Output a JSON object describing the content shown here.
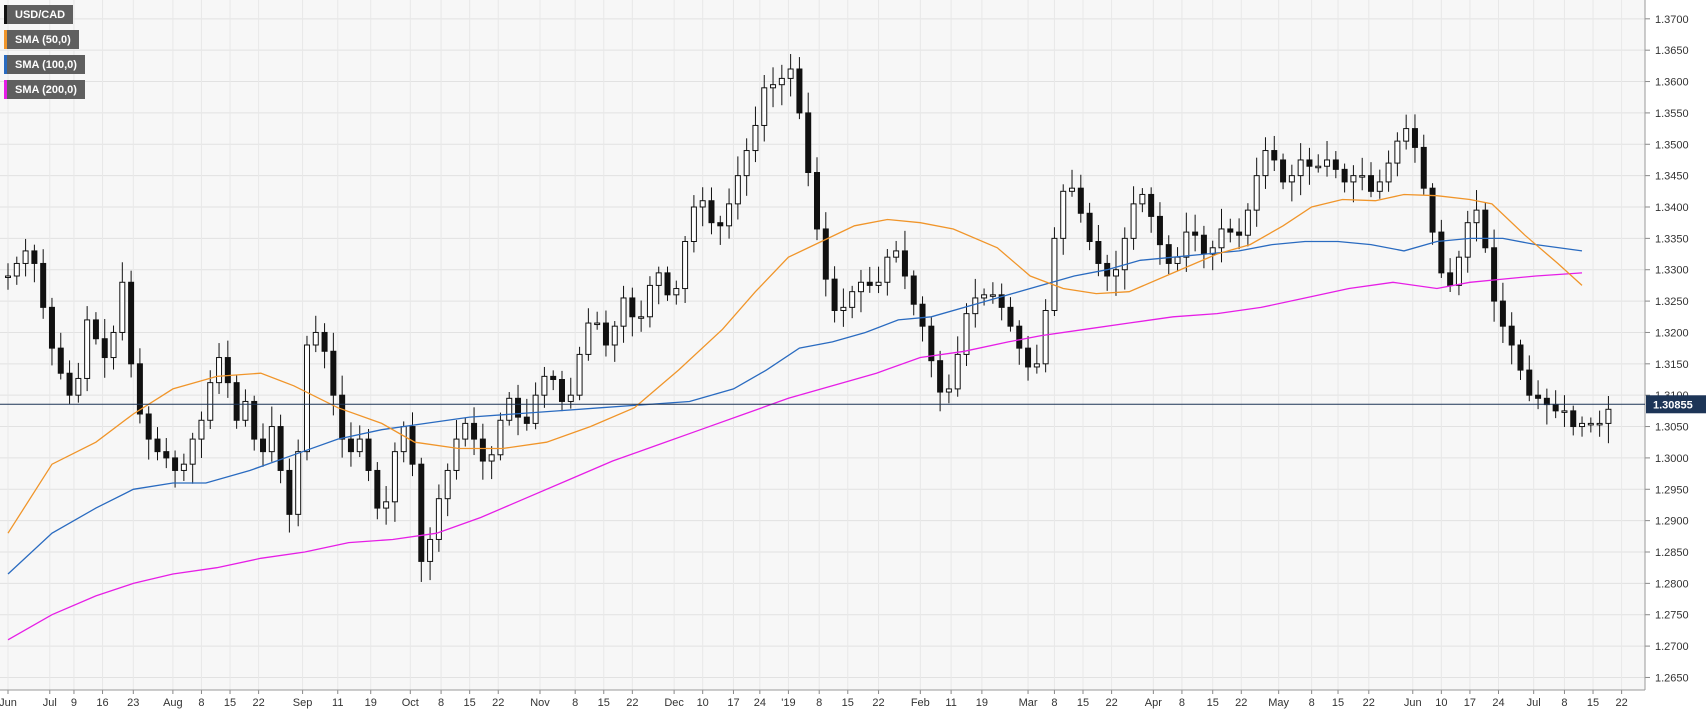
{
  "legend": [
    {
      "label": "USD/CAD",
      "color": "#222222"
    },
    {
      "label": "SMA (50,0)",
      "color": "#f0952a"
    },
    {
      "label": "SMA (100,0)",
      "color": "#2a6bc0"
    },
    {
      "label": "SMA (200,0)",
      "color": "#e61ee6"
    }
  ],
  "chart_data": {
    "type": "candlestick",
    "symbol": "USD/CAD",
    "timeframe": "daily",
    "last_price": "1.30855",
    "ylim": [
      1.263,
      1.373
    ],
    "y_ticks": [
      "1.2650",
      "1.2700",
      "1.2750",
      "1.2800",
      "1.2850",
      "1.2900",
      "1.2950",
      "1.3000",
      "1.3050",
      "1.3100",
      "1.3150",
      "1.3200",
      "1.3250",
      "1.3300",
      "1.3350",
      "1.3400",
      "1.3450",
      "1.3500",
      "1.3550",
      "1.3600",
      "1.3650",
      "1.3700"
    ],
    "x_ticks": [
      {
        "i": 0,
        "label": "Jun"
      },
      {
        "i": 19,
        "label": "Jul"
      },
      {
        "i": 30,
        "label": "9"
      },
      {
        "i": 43,
        "label": "16"
      },
      {
        "i": 57,
        "label": "23"
      },
      {
        "i": 75,
        "label": "Aug"
      },
      {
        "i": 88,
        "label": "8"
      },
      {
        "i": 101,
        "label": "15"
      },
      {
        "i": 114,
        "label": "22"
      },
      {
        "i": 134,
        "label": "Sep"
      },
      {
        "i": 150,
        "label": "11"
      },
      {
        "i": 165,
        "label": "19"
      },
      {
        "i": 183,
        "label": "Oct"
      },
      {
        "i": 197,
        "label": "8"
      },
      {
        "i": 210,
        "label": "15"
      },
      {
        "i": 223,
        "label": "22"
      },
      {
        "i": 242,
        "label": "Nov"
      },
      {
        "i": 258,
        "label": "8"
      },
      {
        "i": 271,
        "label": "15"
      },
      {
        "i": 284,
        "label": "22"
      },
      {
        "i": 303,
        "label": "Dec"
      },
      {
        "i": 316,
        "label": "10"
      },
      {
        "i": 330,
        "label": "17"
      },
      {
        "i": 342,
        "label": "24"
      },
      {
        "i": 355,
        "label": "'19"
      },
      {
        "i": 369,
        "label": "8"
      },
      {
        "i": 382,
        "label": "15"
      },
      {
        "i": 396,
        "label": "22"
      },
      {
        "i": 415,
        "label": "Feb"
      },
      {
        "i": 429,
        "label": "11"
      },
      {
        "i": 443,
        "label": "19"
      },
      {
        "i": 464,
        "label": "Mar"
      },
      {
        "i": 476,
        "label": "8"
      },
      {
        "i": 489,
        "label": "15"
      },
      {
        "i": 502,
        "label": "22"
      },
      {
        "i": 521,
        "label": "Apr"
      },
      {
        "i": 534,
        "label": "8"
      },
      {
        "i": 548,
        "label": "15"
      },
      {
        "i": 561,
        "label": "22"
      },
      {
        "i": 578,
        "label": "May"
      },
      {
        "i": 593,
        "label": "8"
      },
      {
        "i": 605,
        "label": "15"
      },
      {
        "i": 619,
        "label": "22"
      },
      {
        "i": 639,
        "label": "Jun"
      },
      {
        "i": 652,
        "label": "10"
      },
      {
        "i": 665,
        "label": "17"
      },
      {
        "i": 678,
        "label": "24"
      },
      {
        "i": 694,
        "label": "Jul"
      },
      {
        "i": 708,
        "label": "8"
      },
      {
        "i": 721,
        "label": "15"
      },
      {
        "i": 734,
        "label": "22"
      }
    ],
    "x_count": 742,
    "sma_50": [
      [
        0,
        1.288
      ],
      [
        20,
        1.299
      ],
      [
        40,
        1.3025
      ],
      [
        57,
        1.307
      ],
      [
        75,
        1.311
      ],
      [
        95,
        1.313
      ],
      [
        115,
        1.3135
      ],
      [
        130,
        1.3115
      ],
      [
        150,
        1.308
      ],
      [
        170,
        1.3055
      ],
      [
        185,
        1.3025
      ],
      [
        205,
        1.3015
      ],
      [
        225,
        1.3015
      ],
      [
        245,
        1.3025
      ],
      [
        265,
        1.305
      ],
      [
        285,
        1.308
      ],
      [
        305,
        1.314
      ],
      [
        325,
        1.3205
      ],
      [
        340,
        1.3265
      ],
      [
        355,
        1.332
      ],
      [
        370,
        1.3345
      ],
      [
        385,
        1.337
      ],
      [
        400,
        1.338
      ],
      [
        415,
        1.3375
      ],
      [
        430,
        1.3365
      ],
      [
        450,
        1.3335
      ],
      [
        465,
        1.329
      ],
      [
        480,
        1.327
      ],
      [
        495,
        1.3262
      ],
      [
        510,
        1.3265
      ],
      [
        530,
        1.3295
      ],
      [
        550,
        1.3325
      ],
      [
        565,
        1.334
      ],
      [
        580,
        1.337
      ],
      [
        593,
        1.34
      ],
      [
        607,
        1.3412
      ],
      [
        622,
        1.341
      ],
      [
        635,
        1.342
      ],
      [
        650,
        1.3418
      ],
      [
        665,
        1.3412
      ],
      [
        675,
        1.3405
      ],
      [
        690,
        1.3355
      ],
      [
        705,
        1.331
      ],
      [
        716,
        1.3275
      ]
    ],
    "sma_100": [
      [
        0,
        1.2815
      ],
      [
        20,
        1.288
      ],
      [
        40,
        1.292
      ],
      [
        57,
        1.295
      ],
      [
        75,
        1.296
      ],
      [
        90,
        1.296
      ],
      [
        110,
        1.298
      ],
      [
        130,
        1.3005
      ],
      [
        150,
        1.303
      ],
      [
        170,
        1.3045
      ],
      [
        190,
        1.3055
      ],
      [
        210,
        1.3065
      ],
      [
        230,
        1.307
      ],
      [
        250,
        1.3075
      ],
      [
        270,
        1.308
      ],
      [
        290,
        1.3085
      ],
      [
        310,
        1.309
      ],
      [
        330,
        1.311
      ],
      [
        345,
        1.314
      ],
      [
        360,
        1.3175
      ],
      [
        375,
        1.3185
      ],
      [
        390,
        1.32
      ],
      [
        405,
        1.322
      ],
      [
        420,
        1.3225
      ],
      [
        440,
        1.3245
      ],
      [
        455,
        1.326
      ],
      [
        470,
        1.3275
      ],
      [
        485,
        1.329
      ],
      [
        500,
        1.33
      ],
      [
        515,
        1.3315
      ],
      [
        530,
        1.332
      ],
      [
        545,
        1.3325
      ],
      [
        560,
        1.333
      ],
      [
        575,
        1.334
      ],
      [
        590,
        1.3345
      ],
      [
        605,
        1.3345
      ],
      [
        620,
        1.334
      ],
      [
        635,
        1.333
      ],
      [
        650,
        1.3345
      ],
      [
        665,
        1.335
      ],
      [
        680,
        1.335
      ],
      [
        695,
        1.334
      ],
      [
        716,
        1.333
      ]
    ],
    "sma_200": [
      [
        0,
        1.271
      ],
      [
        20,
        1.275
      ],
      [
        40,
        1.278
      ],
      [
        57,
        1.28
      ],
      [
        75,
        1.2815
      ],
      [
        95,
        1.2825
      ],
      [
        115,
        1.284
      ],
      [
        135,
        1.285
      ],
      [
        155,
        1.2865
      ],
      [
        175,
        1.287
      ],
      [
        195,
        1.288
      ],
      [
        215,
        1.2905
      ],
      [
        235,
        1.2935
      ],
      [
        255,
        1.2965
      ],
      [
        275,
        1.2995
      ],
      [
        295,
        1.302
      ],
      [
        315,
        1.3045
      ],
      [
        335,
        1.307
      ],
      [
        355,
        1.3095
      ],
      [
        375,
        1.3115
      ],
      [
        395,
        1.3135
      ],
      [
        415,
        1.316
      ],
      [
        435,
        1.317
      ],
      [
        455,
        1.3185
      ],
      [
        470,
        1.3195
      ],
      [
        490,
        1.3205
      ],
      [
        510,
        1.3215
      ],
      [
        530,
        1.3225
      ],
      [
        550,
        1.323
      ],
      [
        570,
        1.324
      ],
      [
        590,
        1.3255
      ],
      [
        610,
        1.327
      ],
      [
        630,
        1.328
      ],
      [
        650,
        1.327
      ],
      [
        665,
        1.328
      ],
      [
        680,
        1.3285
      ],
      [
        695,
        1.329
      ],
      [
        716,
        1.3295
      ]
    ],
    "price_path": [
      [
        0,
        1.329
      ],
      [
        6,
        1.332
      ],
      [
        10,
        1.334
      ],
      [
        14,
        1.328
      ],
      [
        18,
        1.32
      ],
      [
        22,
        1.315
      ],
      [
        26,
        1.312
      ],
      [
        30,
        1.308
      ],
      [
        36,
        1.322
      ],
      [
        40,
        1.319
      ],
      [
        44,
        1.316
      ],
      [
        48,
        1.32
      ],
      [
        52,
        1.328
      ],
      [
        56,
        1.315
      ],
      [
        60,
        1.307
      ],
      [
        64,
        1.303
      ],
      [
        68,
        1.301
      ],
      [
        72,
        1.3
      ],
      [
        76,
        1.298
      ],
      [
        80,
        1.299
      ],
      [
        84,
        1.303
      ],
      [
        88,
        1.306
      ],
      [
        92,
        1.312
      ],
      [
        96,
        1.316
      ],
      [
        100,
        1.312
      ],
      [
        104,
        1.306
      ],
      [
        108,
        1.309
      ],
      [
        112,
        1.303
      ],
      [
        116,
        1.301
      ],
      [
        120,
        1.305
      ],
      [
        124,
        1.298
      ],
      [
        128,
        1.291
      ],
      [
        132,
        1.301
      ],
      [
        136,
        1.318
      ],
      [
        140,
        1.32
      ],
      [
        144,
        1.317
      ],
      [
        148,
        1.31
      ],
      [
        152,
        1.303
      ],
      [
        156,
        1.301
      ],
      [
        160,
        1.303
      ],
      [
        164,
        1.298
      ],
      [
        168,
        1.292
      ],
      [
        172,
        1.293
      ],
      [
        176,
        1.301
      ],
      [
        180,
        1.305
      ],
      [
        184,
        1.299
      ],
      [
        186,
        1.284
      ],
      [
        190,
        1.283
      ],
      [
        194,
        1.291
      ],
      [
        198,
        1.296
      ],
      [
        202,
        1.3
      ],
      [
        206,
        1.306
      ],
      [
        210,
        1.305
      ],
      [
        214,
        1.301
      ],
      [
        218,
        1.298
      ],
      [
        222,
        1.303
      ],
      [
        226,
        1.309
      ],
      [
        230,
        1.31
      ],
      [
        234,
        1.303
      ],
      [
        238,
        1.308
      ],
      [
        242,
        1.312
      ],
      [
        246,
        1.314
      ],
      [
        250,
        1.311
      ],
      [
        254,
        1.307
      ],
      [
        258,
        1.313
      ],
      [
        262,
        1.32
      ],
      [
        266,
        1.323
      ],
      [
        270,
        1.32
      ],
      [
        274,
        1.316
      ],
      [
        278,
        1.326
      ],
      [
        282,
        1.325
      ],
      [
        286,
        1.32
      ],
      [
        290,
        1.325
      ],
      [
        294,
        1.33
      ],
      [
        298,
        1.329
      ],
      [
        302,
        1.323
      ],
      [
        306,
        1.331
      ],
      [
        310,
        1.338
      ],
      [
        314,
        1.342
      ],
      [
        318,
        1.34
      ],
      [
        322,
        1.335
      ],
      [
        326,
        1.339
      ],
      [
        330,
        1.342
      ],
      [
        334,
        1.348
      ],
      [
        338,
        1.35
      ],
      [
        342,
        1.356
      ],
      [
        346,
        1.362
      ],
      [
        350,
        1.357
      ],
      [
        354,
        1.364
      ],
      [
        358,
        1.36
      ],
      [
        362,
        1.35
      ],
      [
        366,
        1.341
      ],
      [
        370,
        1.332
      ],
      [
        374,
        1.325
      ],
      [
        378,
        1.322
      ],
      [
        382,
        1.326
      ],
      [
        386,
        1.327
      ],
      [
        390,
        1.329
      ],
      [
        394,
        1.326
      ],
      [
        398,
        1.33
      ],
      [
        402,
        1.334
      ],
      [
        406,
        1.332
      ],
      [
        410,
        1.326
      ],
      [
        414,
        1.323
      ],
      [
        418,
        1.319
      ],
      [
        422,
        1.312
      ],
      [
        426,
        1.309
      ],
      [
        430,
        1.313
      ],
      [
        434,
        1.32
      ],
      [
        438,
        1.326
      ],
      [
        442,
        1.325
      ],
      [
        446,
        1.327
      ],
      [
        450,
        1.325
      ],
      [
        454,
        1.323
      ],
      [
        458,
        1.319
      ],
      [
        462,
        1.316
      ],
      [
        466,
        1.313
      ],
      [
        470,
        1.317
      ],
      [
        474,
        1.33
      ],
      [
        478,
        1.34
      ],
      [
        482,
        1.345
      ],
      [
        486,
        1.341
      ],
      [
        490,
        1.337
      ],
      [
        494,
        1.332
      ],
      [
        498,
        1.33
      ],
      [
        502,
        1.328
      ],
      [
        506,
        1.332
      ],
      [
        510,
        1.338
      ],
      [
        514,
        1.343
      ],
      [
        518,
        1.341
      ],
      [
        522,
        1.336
      ],
      [
        526,
        1.332
      ],
      [
        530,
        1.33
      ],
      [
        534,
        1.334
      ],
      [
        538,
        1.338
      ],
      [
        542,
        1.333
      ],
      [
        546,
        1.332
      ],
      [
        550,
        1.335
      ],
      [
        554,
        1.338
      ],
      [
        558,
        1.334
      ],
      [
        562,
        1.337
      ],
      [
        566,
        1.342
      ],
      [
        570,
        1.348
      ],
      [
        574,
        1.35
      ],
      [
        578,
        1.345
      ],
      [
        582,
        1.343
      ],
      [
        586,
        1.347
      ],
      [
        590,
        1.348
      ],
      [
        594,
        1.345
      ],
      [
        598,
        1.348
      ],
      [
        602,
        1.347
      ],
      [
        606,
        1.345
      ],
      [
        610,
        1.343
      ],
      [
        614,
        1.347
      ],
      [
        618,
        1.343
      ],
      [
        622,
        1.342
      ],
      [
        626,
        1.346
      ],
      [
        630,
        1.348
      ],
      [
        634,
        1.353
      ],
      [
        638,
        1.352
      ],
      [
        642,
        1.347
      ],
      [
        646,
        1.339
      ],
      [
        650,
        1.333
      ],
      [
        654,
        1.326
      ],
      [
        658,
        1.329
      ],
      [
        662,
        1.335
      ],
      [
        666,
        1.34
      ],
      [
        670,
        1.339
      ],
      [
        674,
        1.328
      ],
      [
        678,
        1.322
      ],
      [
        682,
        1.32
      ],
      [
        686,
        1.316
      ],
      [
        690,
        1.312
      ],
      [
        694,
        1.308
      ],
      [
        698,
        1.311
      ],
      [
        702,
        1.306
      ],
      [
        706,
        1.309
      ],
      [
        710,
        1.306
      ],
      [
        714,
        1.304
      ],
      [
        718,
        1.307
      ],
      [
        722,
        1.304
      ],
      [
        726,
        1.307
      ],
      [
        730,
        1.3085
      ]
    ]
  }
}
